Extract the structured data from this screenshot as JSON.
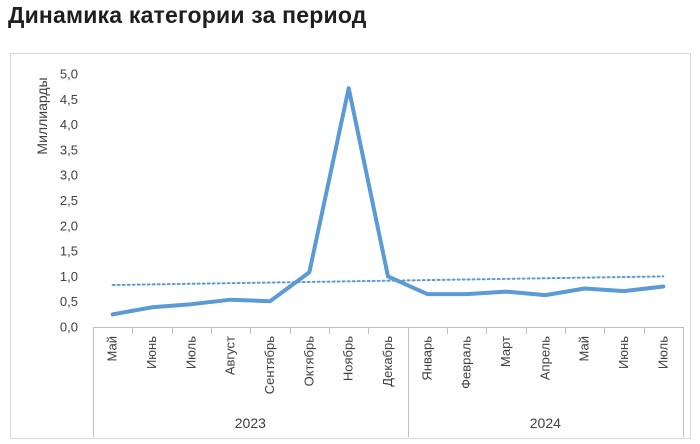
{
  "title": "Динамика категории за период",
  "chart_data": {
    "type": "line",
    "title": "Динамика категории за период",
    "ylabel": "Миллиарды",
    "xlabel": "",
    "ylim": [
      0,
      5
    ],
    "yticks": [
      "0,0",
      "0,5",
      "1,0",
      "1,5",
      "2,0",
      "2,5",
      "3,0",
      "3,5",
      "4,0",
      "4,5",
      "5,0"
    ],
    "grid": false,
    "categories": [
      "Май",
      "Июнь",
      "Июль",
      "Август",
      "Сентябрь",
      "Октябрь",
      "Ноябрь",
      "Декабрь",
      "Январь",
      "Февраль",
      "Март",
      "Апрель",
      "Май",
      "Июнь",
      "Июль"
    ],
    "groups": [
      {
        "label": "2023",
        "count": 8
      },
      {
        "label": "2024",
        "count": 7
      }
    ],
    "series": [
      {
        "values": [
          0.25,
          0.39,
          0.45,
          0.54,
          0.51,
          1.08,
          4.72,
          1.0,
          0.65,
          0.65,
          0.7,
          0.63,
          0.76,
          0.71,
          0.8
        ]
      }
    ],
    "trendline": {
      "start": 0.83,
      "end": 1.0,
      "style": "dotted"
    },
    "colors": {
      "series": "#5b9bd5",
      "trend": "#5b9bd5",
      "axis": "#bfbfbf",
      "frame": "#d9d9d9"
    }
  }
}
